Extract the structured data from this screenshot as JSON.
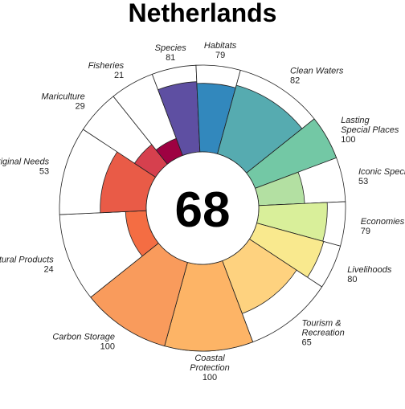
{
  "chart_data": {
    "type": "flower",
    "title": "Netherlands",
    "center_value": "68",
    "value_range": [
      0,
      100
    ],
    "goals": [
      {
        "label": "Natural Products",
        "score": 24,
        "display": "24",
        "color": "#f46d43",
        "weight": 1
      },
      {
        "label": "Aboriginal Needs",
        "score": 53,
        "display": "53",
        "color": "#e95b47",
        "weight": 1
      },
      {
        "label": "Mariculture",
        "score": 29,
        "display": "29",
        "color": "#d6404e",
        "weight": 0.5
      },
      {
        "label": "Fisheries",
        "score": 21,
        "display": "21",
        "color": "#9e0142",
        "weight": 0.5
      },
      {
        "label": "Species",
        "score": 81,
        "display": "81",
        "color": "#5e4fa2",
        "weight": 0.5
      },
      {
        "label": "Habitats",
        "score": 79,
        "display": "79",
        "color": "#3288bd",
        "weight": 0.5
      },
      {
        "label": "Clean Waters",
        "score": 82,
        "display": "82",
        "color": "#56abb0",
        "weight": 1
      },
      {
        "label": "Lasting Special Places",
        "score": 100,
        "display": "100",
        "color": "#73c8a5",
        "weight": 0.5
      },
      {
        "label": "Iconic Species",
        "score": 53,
        "display": "53",
        "color": "#b3e0a2",
        "weight": 0.5
      },
      {
        "label": "Economies",
        "score": 79,
        "display": "79",
        "color": "#d9ef9a",
        "weight": 0.5
      },
      {
        "label": "Livelihoods",
        "score": 80,
        "display": "80",
        "color": "#f9e98e",
        "weight": 0.5
      },
      {
        "label": "Tourism & Recreation",
        "score": 65,
        "display": "65",
        "color": "#fed27f",
        "weight": 1
      },
      {
        "label": "Coastal Protection",
        "score": 100,
        "display": "100",
        "color": "#fdb466",
        "weight": 1
      },
      {
        "label": "Carbon Storage",
        "score": 100,
        "display": "100",
        "color": "#f99b5c",
        "weight": 1
      }
    ]
  }
}
